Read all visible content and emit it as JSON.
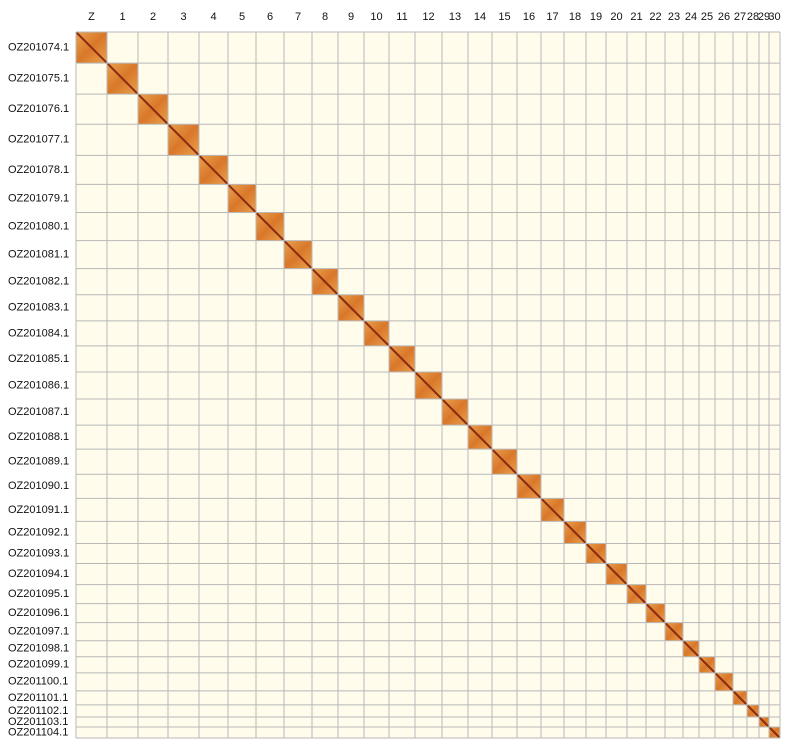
{
  "columns": [
    "Z",
    "1",
    "2",
    "3",
    "4",
    "5",
    "6",
    "7",
    "8",
    "9",
    "10",
    "11",
    "12",
    "13",
    "14",
    "15",
    "16",
    "17",
    "18",
    "19",
    "20",
    "21",
    "22",
    "23",
    "24",
    "25",
    "26",
    "27",
    "28",
    "29",
    "30"
  ],
  "rows": [
    "OZ201074.1",
    "OZ201075.1",
    "OZ201076.1",
    "OZ201077.1",
    "OZ201078.1",
    "OZ201079.1",
    "OZ201080.1",
    "OZ201081.1",
    "OZ201082.1",
    "OZ201083.1",
    "OZ201084.1",
    "OZ201085.1",
    "OZ201086.1",
    "OZ201087.1",
    "OZ201088.1",
    "OZ201089.1",
    "OZ201090.1",
    "OZ201091.1",
    "OZ201092.1",
    "OZ201093.1",
    "OZ201094.1",
    "OZ201095.1",
    "OZ201096.1",
    "OZ201097.1",
    "OZ201098.1",
    "OZ201099.1",
    "OZ201100.1",
    "OZ201101.1",
    "OZ201102.1",
    "OZ201103.1",
    "OZ201104.1"
  ]
}
